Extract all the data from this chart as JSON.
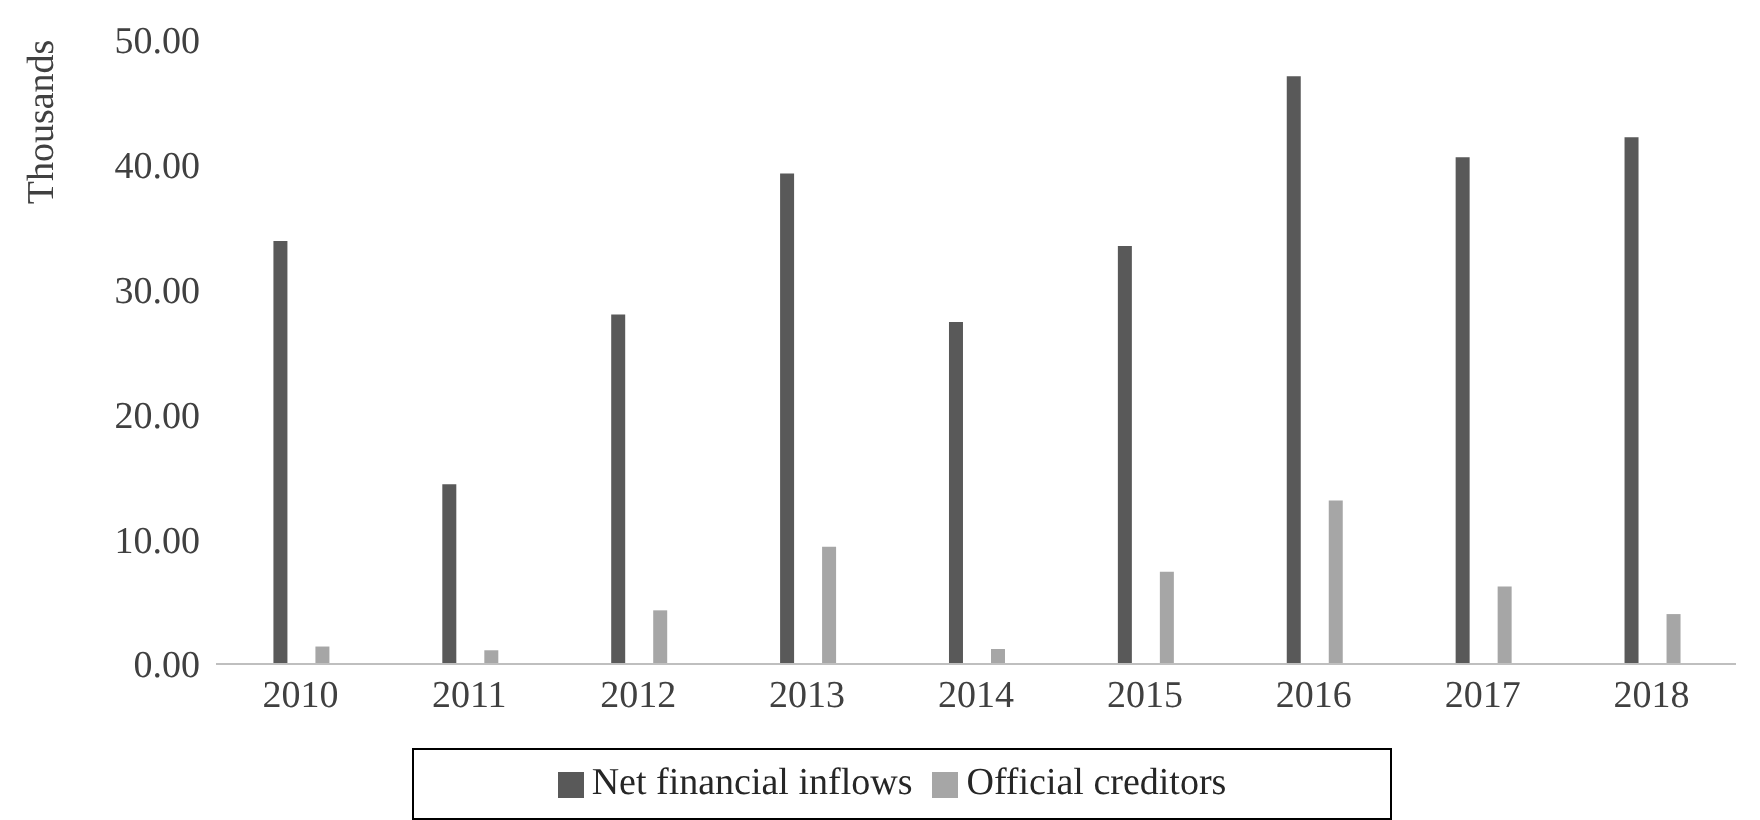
{
  "chart_data": {
    "type": "bar",
    "ylabel": "Thousands",
    "categories": [
      "2010",
      "2011",
      "2012",
      "2013",
      "2014",
      "2015",
      "2016",
      "2017",
      "2018"
    ],
    "series": [
      {
        "name": "Net financial inflows",
        "color": "#595959",
        "values": [
          33.9,
          14.4,
          28.0,
          39.3,
          27.4,
          33.5,
          47.1,
          40.6,
          42.2
        ]
      },
      {
        "name": "Official creditors",
        "color": "#a6a6a6",
        "values": [
          1.4,
          1.1,
          4.3,
          9.4,
          1.2,
          7.4,
          13.1,
          6.2,
          4.0
        ]
      }
    ],
    "ylim": [
      0,
      50
    ],
    "yticks": [
      {
        "value": 0,
        "label": "0.00"
      },
      {
        "value": 10,
        "label": "10.00"
      },
      {
        "value": 20,
        "label": "20.00"
      },
      {
        "value": 30,
        "label": "30.00"
      },
      {
        "value": 40,
        "label": "40.00"
      },
      {
        "value": 50,
        "label": "50.00"
      }
    ],
    "grid": false,
    "legend": "bottom"
  }
}
